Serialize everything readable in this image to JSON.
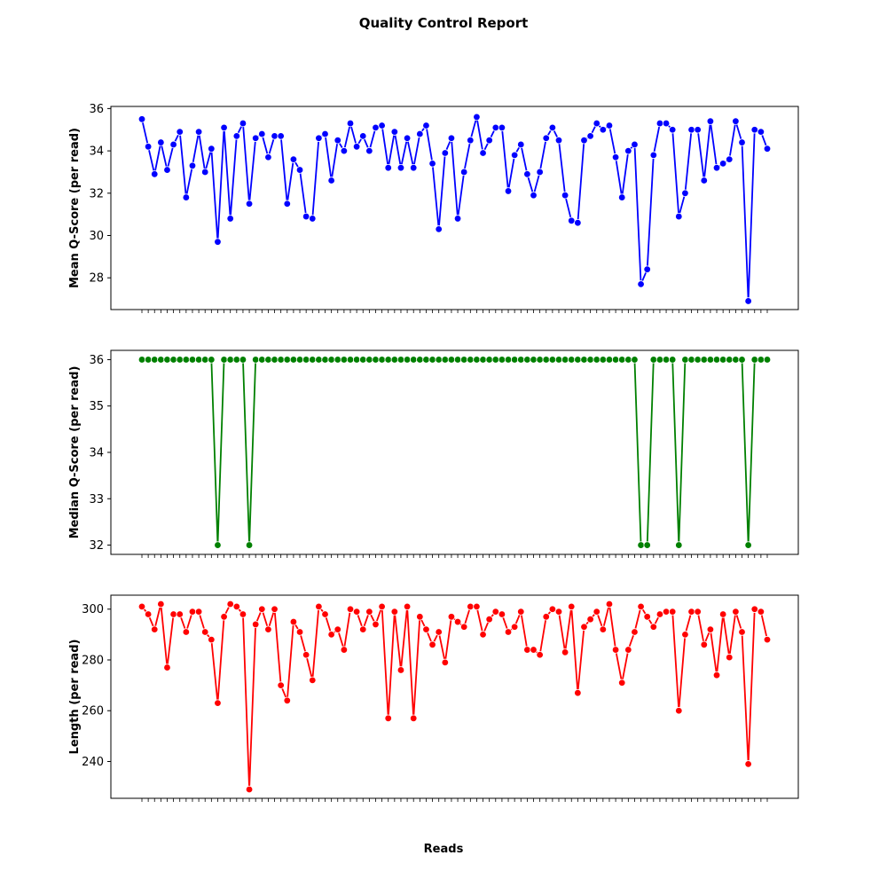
{
  "title": "Quality Control Report",
  "xlabel": "Reads",
  "chart_data": [
    {
      "type": "line",
      "ylabel": "Mean Q-Score (per read)",
      "color": "#0000ff",
      "marker": "circle",
      "ylim": [
        26.5,
        36.1
      ],
      "yticks": [
        28,
        30,
        32,
        34,
        36
      ],
      "x_tick_labels_shown": false,
      "grid": false,
      "series": [
        {
          "values": [
            35.5,
            34.2,
            32.9,
            34.4,
            33.1,
            34.3,
            34.9,
            31.8,
            33.3,
            34.9,
            33.0,
            34.1,
            29.7,
            35.1,
            30.8,
            34.7,
            35.3,
            31.5,
            34.6,
            34.8,
            33.7,
            34.7,
            34.7,
            31.5,
            33.6,
            33.1,
            30.9,
            30.8,
            34.6,
            34.8,
            32.6,
            34.5,
            34.0,
            35.3,
            34.2,
            34.7,
            34.0,
            35.1,
            35.2,
            33.2,
            34.9,
            33.2,
            34.6,
            33.2,
            34.8,
            35.2,
            33.4,
            30.3,
            33.9,
            34.6,
            30.8,
            33.0,
            34.5,
            35.6,
            33.9,
            34.5,
            35.1,
            35.1,
            32.1,
            33.8,
            34.3,
            32.9,
            31.9,
            33.0,
            34.6,
            35.1,
            34.5,
            31.9,
            30.7,
            30.6,
            34.5,
            34.7,
            35.3,
            35.0,
            35.2,
            33.7,
            31.8,
            34.0,
            34.3,
            27.7,
            28.4,
            33.8,
            35.3,
            35.3,
            35.0,
            30.9,
            32.0,
            35.0,
            35.0,
            32.6,
            35.4,
            33.2,
            33.4,
            33.6,
            35.4,
            34.4,
            26.9,
            35.0,
            34.9,
            34.1
          ]
        }
      ]
    },
    {
      "type": "line",
      "ylabel": "Median Q-Score (per read)",
      "color": "#008000",
      "marker": "circle",
      "ylim": [
        31.8,
        36.2
      ],
      "yticks": [
        32,
        33,
        34,
        35,
        36
      ],
      "x_tick_labels_shown": false,
      "grid": false,
      "series": [
        {
          "values": [
            36,
            36,
            36,
            36,
            36,
            36,
            36,
            36,
            36,
            36,
            36,
            36,
            32,
            36,
            36,
            36,
            36,
            32,
            36,
            36,
            36,
            36,
            36,
            36,
            36,
            36,
            36,
            36,
            36,
            36,
            36,
            36,
            36,
            36,
            36,
            36,
            36,
            36,
            36,
            36,
            36,
            36,
            36,
            36,
            36,
            36,
            36,
            36,
            36,
            36,
            36,
            36,
            36,
            36,
            36,
            36,
            36,
            36,
            36,
            36,
            36,
            36,
            36,
            36,
            36,
            36,
            36,
            36,
            36,
            36,
            36,
            36,
            36,
            36,
            36,
            36,
            36,
            36,
            36,
            32,
            32,
            36,
            36,
            36,
            36,
            32,
            36,
            36,
            36,
            36,
            36,
            36,
            36,
            36,
            36,
            36,
            32,
            36,
            36,
            36
          ]
        }
      ]
    },
    {
      "type": "line",
      "ylabel": "Length (per read)",
      "color": "#ff0000",
      "marker": "circle",
      "ylim": [
        225.5,
        305.5
      ],
      "yticks": [
        240,
        260,
        280,
        300
      ],
      "x_tick_labels_shown": false,
      "grid": false,
      "series": [
        {
          "values": [
            301,
            298,
            292,
            302,
            277,
            298,
            298,
            291,
            299,
            299,
            291,
            288,
            263,
            297,
            302,
            301,
            298,
            229,
            294,
            300,
            292,
            300,
            270,
            264,
            295,
            291,
            282,
            272,
            301,
            298,
            290,
            292,
            284,
            300,
            299,
            292,
            299,
            294,
            301,
            257,
            299,
            276,
            301,
            257,
            297,
            292,
            286,
            291,
            279,
            297,
            295,
            293,
            301,
            301,
            290,
            296,
            299,
            298,
            291,
            293,
            299,
            284,
            284,
            282,
            297,
            300,
            299,
            283,
            301,
            267,
            293,
            296,
            299,
            292,
            302,
            284,
            271,
            284,
            291,
            301,
            297,
            293,
            298,
            299,
            299,
            260,
            290,
            299,
            299,
            286,
            292,
            274,
            298,
            281,
            299,
            291,
            239,
            300,
            299,
            288
          ]
        }
      ]
    }
  ]
}
